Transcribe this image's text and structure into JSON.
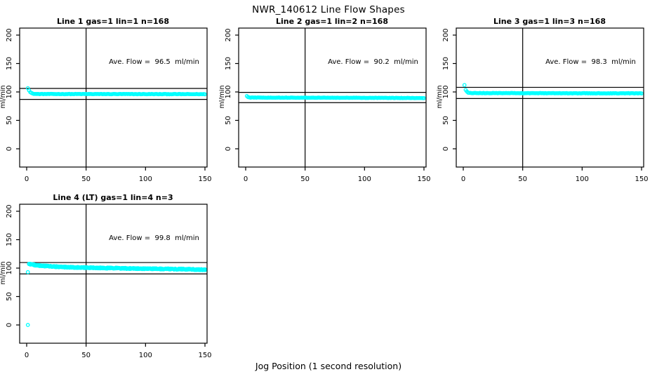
{
  "chart_data": {
    "type": "scatter",
    "title": "NWR_140612  Line Flow Shapes",
    "xlabel": "Jog Position (1 second resolution)",
    "ylabel": "ml/min",
    "xticks": [
      0,
      50,
      100,
      150
    ],
    "yticks": [
      0,
      50,
      100,
      150,
      200
    ],
    "xlim": [
      0,
      155
    ],
    "ylim": [
      0,
      200
    ],
    "vline_x": 50,
    "grid": false,
    "legend": "none",
    "point_color": "#00FFFF",
    "line_color": "#000000",
    "panels": [
      {
        "type": "scatter",
        "title": "Line 1 gas=1 lin=1 n=168",
        "annotation": "Ave. Flow =  96.5  ml/min",
        "ave_flow_ml_min": 96.5,
        "hlines": [
          106.15,
          86.85
        ],
        "x_start": 1,
        "x_end": 150,
        "runs": 1,
        "jitter": 0.35,
        "profile_keypoints": [
          [
            1,
            107
          ],
          [
            2,
            103
          ],
          [
            3,
            99.5
          ],
          [
            5,
            97
          ],
          [
            8,
            96.4
          ],
          [
            40,
            96.3
          ],
          [
            150,
            96.1
          ]
        ],
        "extra_points": []
      },
      {
        "type": "scatter",
        "title": "Line 2 gas=1 lin=2 n=168",
        "annotation": "Ave. Flow =  90.2  ml/min",
        "ave_flow_ml_min": 90.2,
        "hlines": [
          99.22,
          81.18
        ],
        "x_start": 1,
        "x_end": 150,
        "runs": 1,
        "jitter": 0.3,
        "profile_keypoints": [
          [
            1,
            92.5
          ],
          [
            2,
            91
          ],
          [
            4,
            90.2
          ],
          [
            20,
            90
          ],
          [
            100,
            89.7
          ],
          [
            150,
            89.2
          ]
        ],
        "extra_points": []
      },
      {
        "type": "scatter",
        "title": "Line 3 gas=1 lin=3 n=168",
        "annotation": "Ave. Flow =  98.3  ml/min",
        "ave_flow_ml_min": 98.3,
        "hlines": [
          108.13,
          88.47
        ],
        "x_start": 1,
        "x_end": 150,
        "runs": 1,
        "jitter": 0.35,
        "profile_keypoints": [
          [
            1,
            112
          ],
          [
            2,
            103.5
          ],
          [
            4,
            98.8
          ],
          [
            8,
            98
          ],
          [
            60,
            97.8
          ],
          [
            150,
            97.6
          ]
        ],
        "extra_points": []
      },
      {
        "type": "scatter",
        "title": "Line 4 (LT) gas=1 lin=4 n=3",
        "annotation": "Ave. Flow =  99.8  ml/min",
        "ave_flow_ml_min": 99.8,
        "hlines": [
          109.78,
          89.82
        ],
        "x_start": 2,
        "x_end": 150,
        "runs": 3,
        "jitter": 0.9,
        "profile_keypoints": [
          [
            2,
            107.5
          ],
          [
            4,
            106.5
          ],
          [
            8,
            105
          ],
          [
            15,
            103.8
          ],
          [
            30,
            102
          ],
          [
            50,
            100.8
          ],
          [
            70,
            100
          ],
          [
            90,
            99.3
          ],
          [
            110,
            98.7
          ],
          [
            130,
            98.2
          ],
          [
            150,
            97.2
          ]
        ],
        "extra_points": [
          [
            1,
            0
          ],
          [
            1,
            93
          ]
        ]
      }
    ]
  }
}
